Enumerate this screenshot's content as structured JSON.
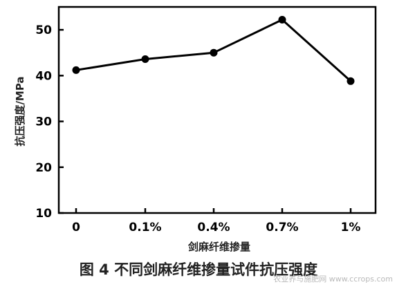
{
  "chart_data": {
    "type": "line",
    "categories": [
      "0",
      "0.1%",
      "0.4%",
      "0.7%",
      "1%"
    ],
    "values": [
      41.2,
      43.6,
      45.0,
      52.2,
      38.8
    ],
    "xlabel": "剑麻纤维掺量",
    "ylabel": "抗压强度/MPa",
    "ylim": [
      10,
      55
    ],
    "yticks": [
      10,
      20,
      30,
      40,
      50
    ],
    "grid": false,
    "legend": "none",
    "line_color": "#000000"
  },
  "caption": "图 4 不同剑麻纤维掺量试件抗压强度",
  "watermark": "农业养与施肥网 www.ccrops.com"
}
